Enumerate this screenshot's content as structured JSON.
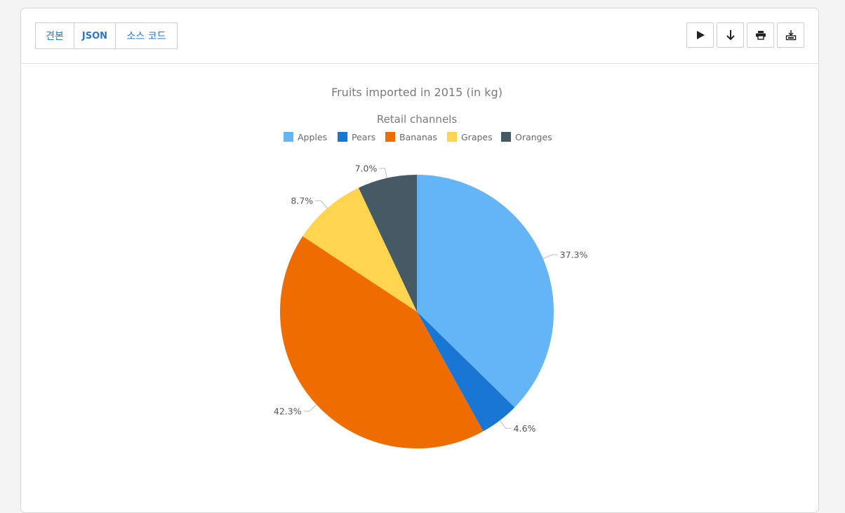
{
  "tabs": [
    "견본",
    "JSON",
    "소스 코드"
  ],
  "toolbar": {
    "actions": [
      {
        "name": "play-icon"
      },
      {
        "name": "download-arrow-icon"
      },
      {
        "name": "print-icon"
      },
      {
        "name": "save-image-icon"
      }
    ]
  },
  "colors": {
    "Apples": "#64b5f6",
    "Pears": "#1976d2",
    "Bananas": "#ef6c00",
    "Grapes": "#ffd54f",
    "Oranges": "#455a64"
  },
  "chart_data": {
    "type": "pie",
    "title": "Fruits imported in 2015 (in kg)",
    "subtitle": "Retail channels",
    "legend_position": "top",
    "series": [
      {
        "name": "Apples",
        "value": 37.3,
        "label": "37.3%"
      },
      {
        "name": "Pears",
        "value": 4.6,
        "label": "4.6%"
      },
      {
        "name": "Bananas",
        "value": 42.3,
        "label": "42.3%"
      },
      {
        "name": "Grapes",
        "value": 8.7,
        "label": "8.7%"
      },
      {
        "name": "Oranges",
        "value": 7.0,
        "label": "7.0%"
      }
    ]
  }
}
